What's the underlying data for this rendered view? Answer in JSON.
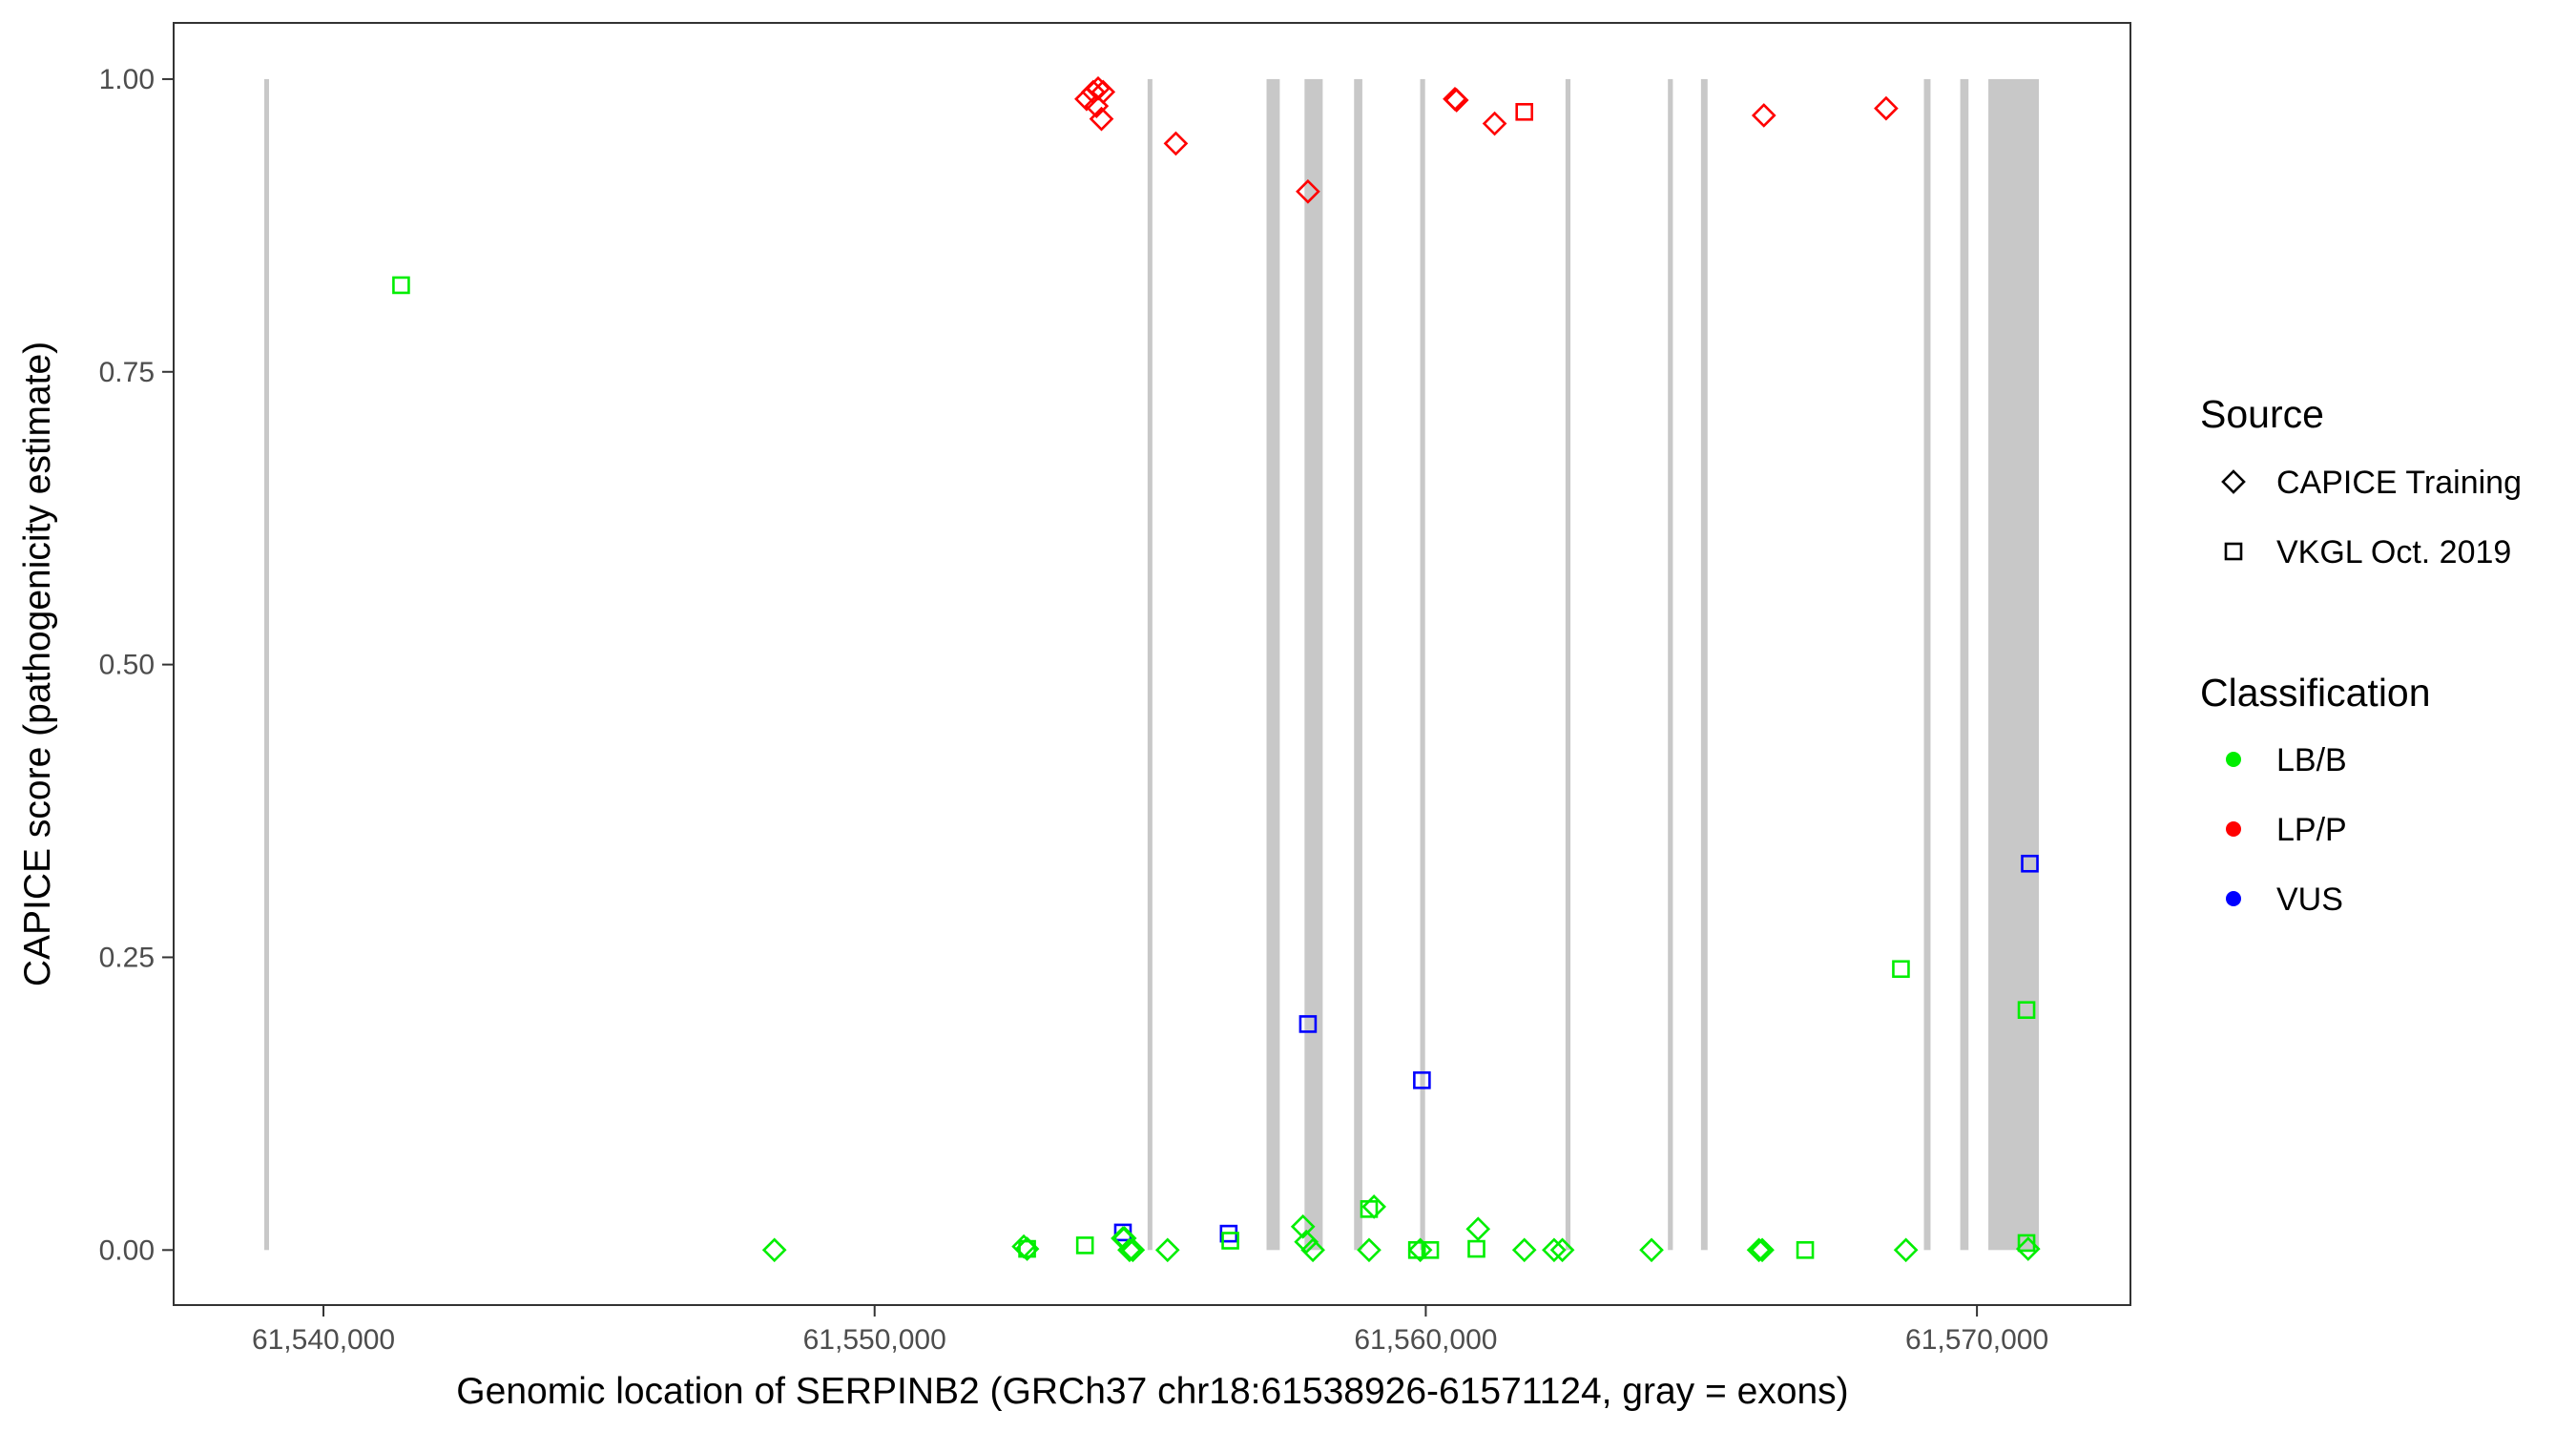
{
  "chart_data": {
    "type": "scatter",
    "title": "",
    "xlabel": "Genomic location of SERPINB2 (GRCh37 chr18:61538926-61571124, gray = exons)",
    "ylabel": "CAPICE score (pathogenicity estimate)",
    "xlim": [
      61537282,
      61572785
    ],
    "ylim": [
      -0.047,
      1.048
    ],
    "x_ticks": [
      61540000,
      61550000,
      61560000,
      61570000
    ],
    "x_tick_labels": [
      "61,540,000",
      "61,550,000",
      "61,560,000",
      "61,570,000"
    ],
    "y_ticks": [
      0,
      0.25,
      0.5,
      0.75,
      1.0
    ],
    "y_tick_labels": [
      "0.00",
      "0.25",
      "0.50",
      "0.75",
      "1.00"
    ],
    "grid": false,
    "legend_placement": "right",
    "exons": [
      [
        61538926,
        61538981
      ],
      [
        61554953,
        61555013
      ],
      [
        61557111,
        61557351
      ],
      [
        61557800,
        61558130
      ],
      [
        61558699,
        61558849
      ],
      [
        61559898,
        61559988
      ],
      [
        61562535,
        61562625
      ],
      [
        61564393,
        61564483
      ],
      [
        61564993,
        61565113
      ],
      [
        61569038,
        61569158
      ],
      [
        61569697,
        61569847
      ],
      [
        61570207,
        61571124
      ]
    ],
    "legend": {
      "source_title": "Source",
      "sources": [
        {
          "key": "training",
          "label": "CAPICE Training",
          "shape": "diamond"
        },
        {
          "key": "vkgl",
          "label": "VKGL Oct. 2019",
          "shape": "square"
        }
      ],
      "class_title": "Classification",
      "classes": [
        {
          "key": "LB/B",
          "label": "LB/B",
          "color": "#00ee00"
        },
        {
          "key": "LP/P",
          "label": "LP/P",
          "color": "#ff0000"
        },
        {
          "key": "VUS",
          "label": "VUS",
          "color": "#0000ff"
        }
      ]
    },
    "colors": {
      "exon": "#c8c8c8",
      "axis": "#333333"
    },
    "points": [
      [
        61553846,
        0.983,
        "training",
        "LP/P"
      ],
      [
        61553966,
        0.989,
        "training",
        "LP/P"
      ],
      [
        61554056,
        0.992,
        "training",
        "LP/P"
      ],
      [
        61554146,
        0.989,
        "training",
        "LP/P"
      ],
      [
        61554026,
        0.977,
        "training",
        "LP/P"
      ],
      [
        61554116,
        0.966,
        "training",
        "LP/P"
      ],
      [
        61555465,
        0.945,
        "training",
        "LP/P"
      ],
      [
        61557862,
        0.904,
        "training",
        "LP/P"
      ],
      [
        61560529,
        0.983,
        "training",
        "LP/P"
      ],
      [
        61560559,
        0.982,
        "training",
        "LP/P"
      ],
      [
        61561249,
        0.962,
        "training",
        "LP/P"
      ],
      [
        61566134,
        0.969,
        "training",
        "LP/P"
      ],
      [
        61568352,
        0.975,
        "training",
        "LP/P"
      ],
      [
        61561788,
        0.972,
        "vkgl",
        "LP/P"
      ],
      [
        61541409,
        0.824,
        "vkgl",
        "LB/B"
      ],
      [
        61554505,
        0.015,
        "vkgl",
        "VUS"
      ],
      [
        61556424,
        0.014,
        "vkgl",
        "VUS"
      ],
      [
        61557862,
        0.193,
        "vkgl",
        "VUS"
      ],
      [
        61559930,
        0.145,
        "vkgl",
        "VUS"
      ],
      [
        61570959,
        0.33,
        "vkgl",
        "VUS"
      ],
      [
        61553816,
        0.004,
        "vkgl",
        "LB/B"
      ],
      [
        61556454,
        0.008,
        "vkgl",
        "LB/B"
      ],
      [
        61558971,
        0.035,
        "vkgl",
        "LB/B"
      ],
      [
        61559840,
        0.0,
        "vkgl",
        "LB/B"
      ],
      [
        61560080,
        0.0,
        "vkgl",
        "LB/B"
      ],
      [
        61560919,
        0.001,
        "vkgl",
        "LB/B"
      ],
      [
        61566883,
        0.0,
        "vkgl",
        "LB/B"
      ],
      [
        61568621,
        0.24,
        "vkgl",
        "LB/B"
      ],
      [
        61570899,
        0.205,
        "vkgl",
        "LB/B"
      ],
      [
        61570899,
        0.006,
        "vkgl",
        "LB/B"
      ],
      [
        61552767,
        0.001,
        "vkgl",
        "LB/B"
      ],
      [
        61548182,
        0.0,
        "training",
        "LB/B"
      ],
      [
        61552707,
        0.003,
        "training",
        "LB/B"
      ],
      [
        61552767,
        0.001,
        "training",
        "LB/B"
      ],
      [
        61554505,
        0.01,
        "training",
        "LB/B"
      ],
      [
        61554535,
        0.01,
        "training",
        "LB/B"
      ],
      [
        61554625,
        0.0,
        "training",
        "LB/B"
      ],
      [
        61554685,
        0.0,
        "training",
        "LB/B"
      ],
      [
        61555315,
        0.0,
        "training",
        "LB/B"
      ],
      [
        61557772,
        0.02,
        "training",
        "LB/B"
      ],
      [
        61557832,
        0.007,
        "training",
        "LB/B"
      ],
      [
        61557952,
        0.0,
        "training",
        "LB/B"
      ],
      [
        61558971,
        0.0,
        "training",
        "LB/B"
      ],
      [
        61559061,
        0.037,
        "training",
        "LB/B"
      ],
      [
        61559900,
        0.0,
        "training",
        "LB/B"
      ],
      [
        61560949,
        0.018,
        "training",
        "LB/B"
      ],
      [
        61561788,
        0.0,
        "training",
        "LB/B"
      ],
      [
        61562328,
        0.0,
        "training",
        "LB/B"
      ],
      [
        61562478,
        0.0,
        "training",
        "LB/B"
      ],
      [
        61564096,
        0.0,
        "training",
        "LB/B"
      ],
      [
        61566044,
        0.0,
        "training",
        "LB/B"
      ],
      [
        61566104,
        0.0,
        "training",
        "LB/B"
      ],
      [
        61568711,
        0.0,
        "training",
        "LB/B"
      ],
      [
        61570929,
        0.001,
        "training",
        "LB/B"
      ]
    ]
  }
}
